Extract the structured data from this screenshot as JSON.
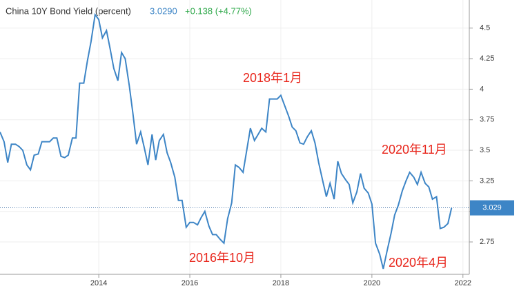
{
  "chart_data": {
    "type": "line",
    "title": "China 10Y Bond Yield (percent)",
    "last_value": "3.0290",
    "change": "+0.138 (+4.77%)",
    "annotations": [
      "2018年1月",
      "2016年10月",
      "2020年11月",
      "2020年4月"
    ],
    "price_tag": 3.029,
    "xlim": [
      2011.83,
      2022.14
    ],
    "xticks": [
      2014,
      2016,
      2018,
      2020,
      2022
    ],
    "ylim": [
      2.485,
      4.73
    ],
    "yticks": [
      2.75,
      3,
      3.25,
      3.5,
      3.75,
      4,
      4.25,
      4.5
    ],
    "grid": true,
    "x": [
      2011.83,
      2011.92,
      2012.0,
      2012.08,
      2012.17,
      2012.25,
      2012.33,
      2012.42,
      2012.5,
      2012.58,
      2012.67,
      2012.75,
      2012.83,
      2012.92,
      2013.0,
      2013.08,
      2013.17,
      2013.25,
      2013.33,
      2013.42,
      2013.5,
      2013.58,
      2013.67,
      2013.75,
      2013.83,
      2013.92,
      2014.0,
      2014.08,
      2014.17,
      2014.25,
      2014.33,
      2014.42,
      2014.5,
      2014.58,
      2014.67,
      2014.75,
      2014.83,
      2014.92,
      2015.0,
      2015.08,
      2015.17,
      2015.25,
      2015.33,
      2015.42,
      2015.5,
      2015.58,
      2015.67,
      2015.75,
      2015.83,
      2015.92,
      2016.0,
      2016.08,
      2016.17,
      2016.25,
      2016.33,
      2016.42,
      2016.5,
      2016.58,
      2016.67,
      2016.75,
      2016.83,
      2016.92,
      2017.0,
      2017.08,
      2017.17,
      2017.25,
      2017.33,
      2017.42,
      2017.5,
      2017.58,
      2017.67,
      2017.75,
      2017.83,
      2017.92,
      2018.0,
      2018.08,
      2018.17,
      2018.25,
      2018.33,
      2018.42,
      2018.5,
      2018.58,
      2018.67,
      2018.75,
      2018.83,
      2018.92,
      2019.0,
      2019.08,
      2019.17,
      2019.25,
      2019.33,
      2019.42,
      2019.5,
      2019.58,
      2019.67,
      2019.75,
      2019.83,
      2019.92,
      2020.0,
      2020.08,
      2020.17,
      2020.25,
      2020.33,
      2020.42,
      2020.5,
      2020.58,
      2020.67,
      2020.75,
      2020.83,
      2020.92,
      2021.0,
      2021.08,
      2021.17,
      2021.25,
      2021.33,
      2021.42,
      2021.5,
      2021.58,
      2021.67,
      2021.75
    ],
    "series": [
      {
        "color": "#3d85c6",
        "values": [
          3.65,
          3.57,
          3.4,
          3.55,
          3.55,
          3.53,
          3.5,
          3.38,
          3.34,
          3.46,
          3.47,
          3.57,
          3.57,
          3.57,
          3.6,
          3.6,
          3.45,
          3.44,
          3.46,
          3.6,
          3.6,
          4.05,
          4.05,
          4.23,
          4.39,
          4.61,
          4.57,
          4.42,
          4.48,
          4.33,
          4.17,
          4.07,
          4.3,
          4.25,
          4.03,
          3.8,
          3.55,
          3.65,
          3.52,
          3.38,
          3.63,
          3.42,
          3.58,
          3.63,
          3.48,
          3.4,
          3.28,
          3.09,
          3.09,
          2.87,
          2.91,
          2.91,
          2.89,
          2.95,
          3.0,
          2.88,
          2.81,
          2.81,
          2.77,
          2.74,
          2.94,
          3.07,
          3.38,
          3.36,
          3.32,
          3.5,
          3.68,
          3.58,
          3.63,
          3.68,
          3.65,
          3.92,
          3.92,
          3.92,
          3.95,
          3.87,
          3.78,
          3.69,
          3.66,
          3.56,
          3.55,
          3.61,
          3.66,
          3.56,
          3.4,
          3.25,
          3.12,
          3.23,
          3.1,
          3.41,
          3.31,
          3.26,
          3.22,
          3.07,
          3.16,
          3.31,
          3.19,
          3.15,
          3.06,
          2.74,
          2.65,
          2.53,
          2.67,
          2.82,
          2.97,
          3.05,
          3.17,
          3.25,
          3.32,
          3.28,
          3.22,
          3.32,
          3.23,
          3.2,
          3.1,
          3.12,
          2.86,
          2.87,
          2.9,
          3.029
        ]
      }
    ]
  }
}
